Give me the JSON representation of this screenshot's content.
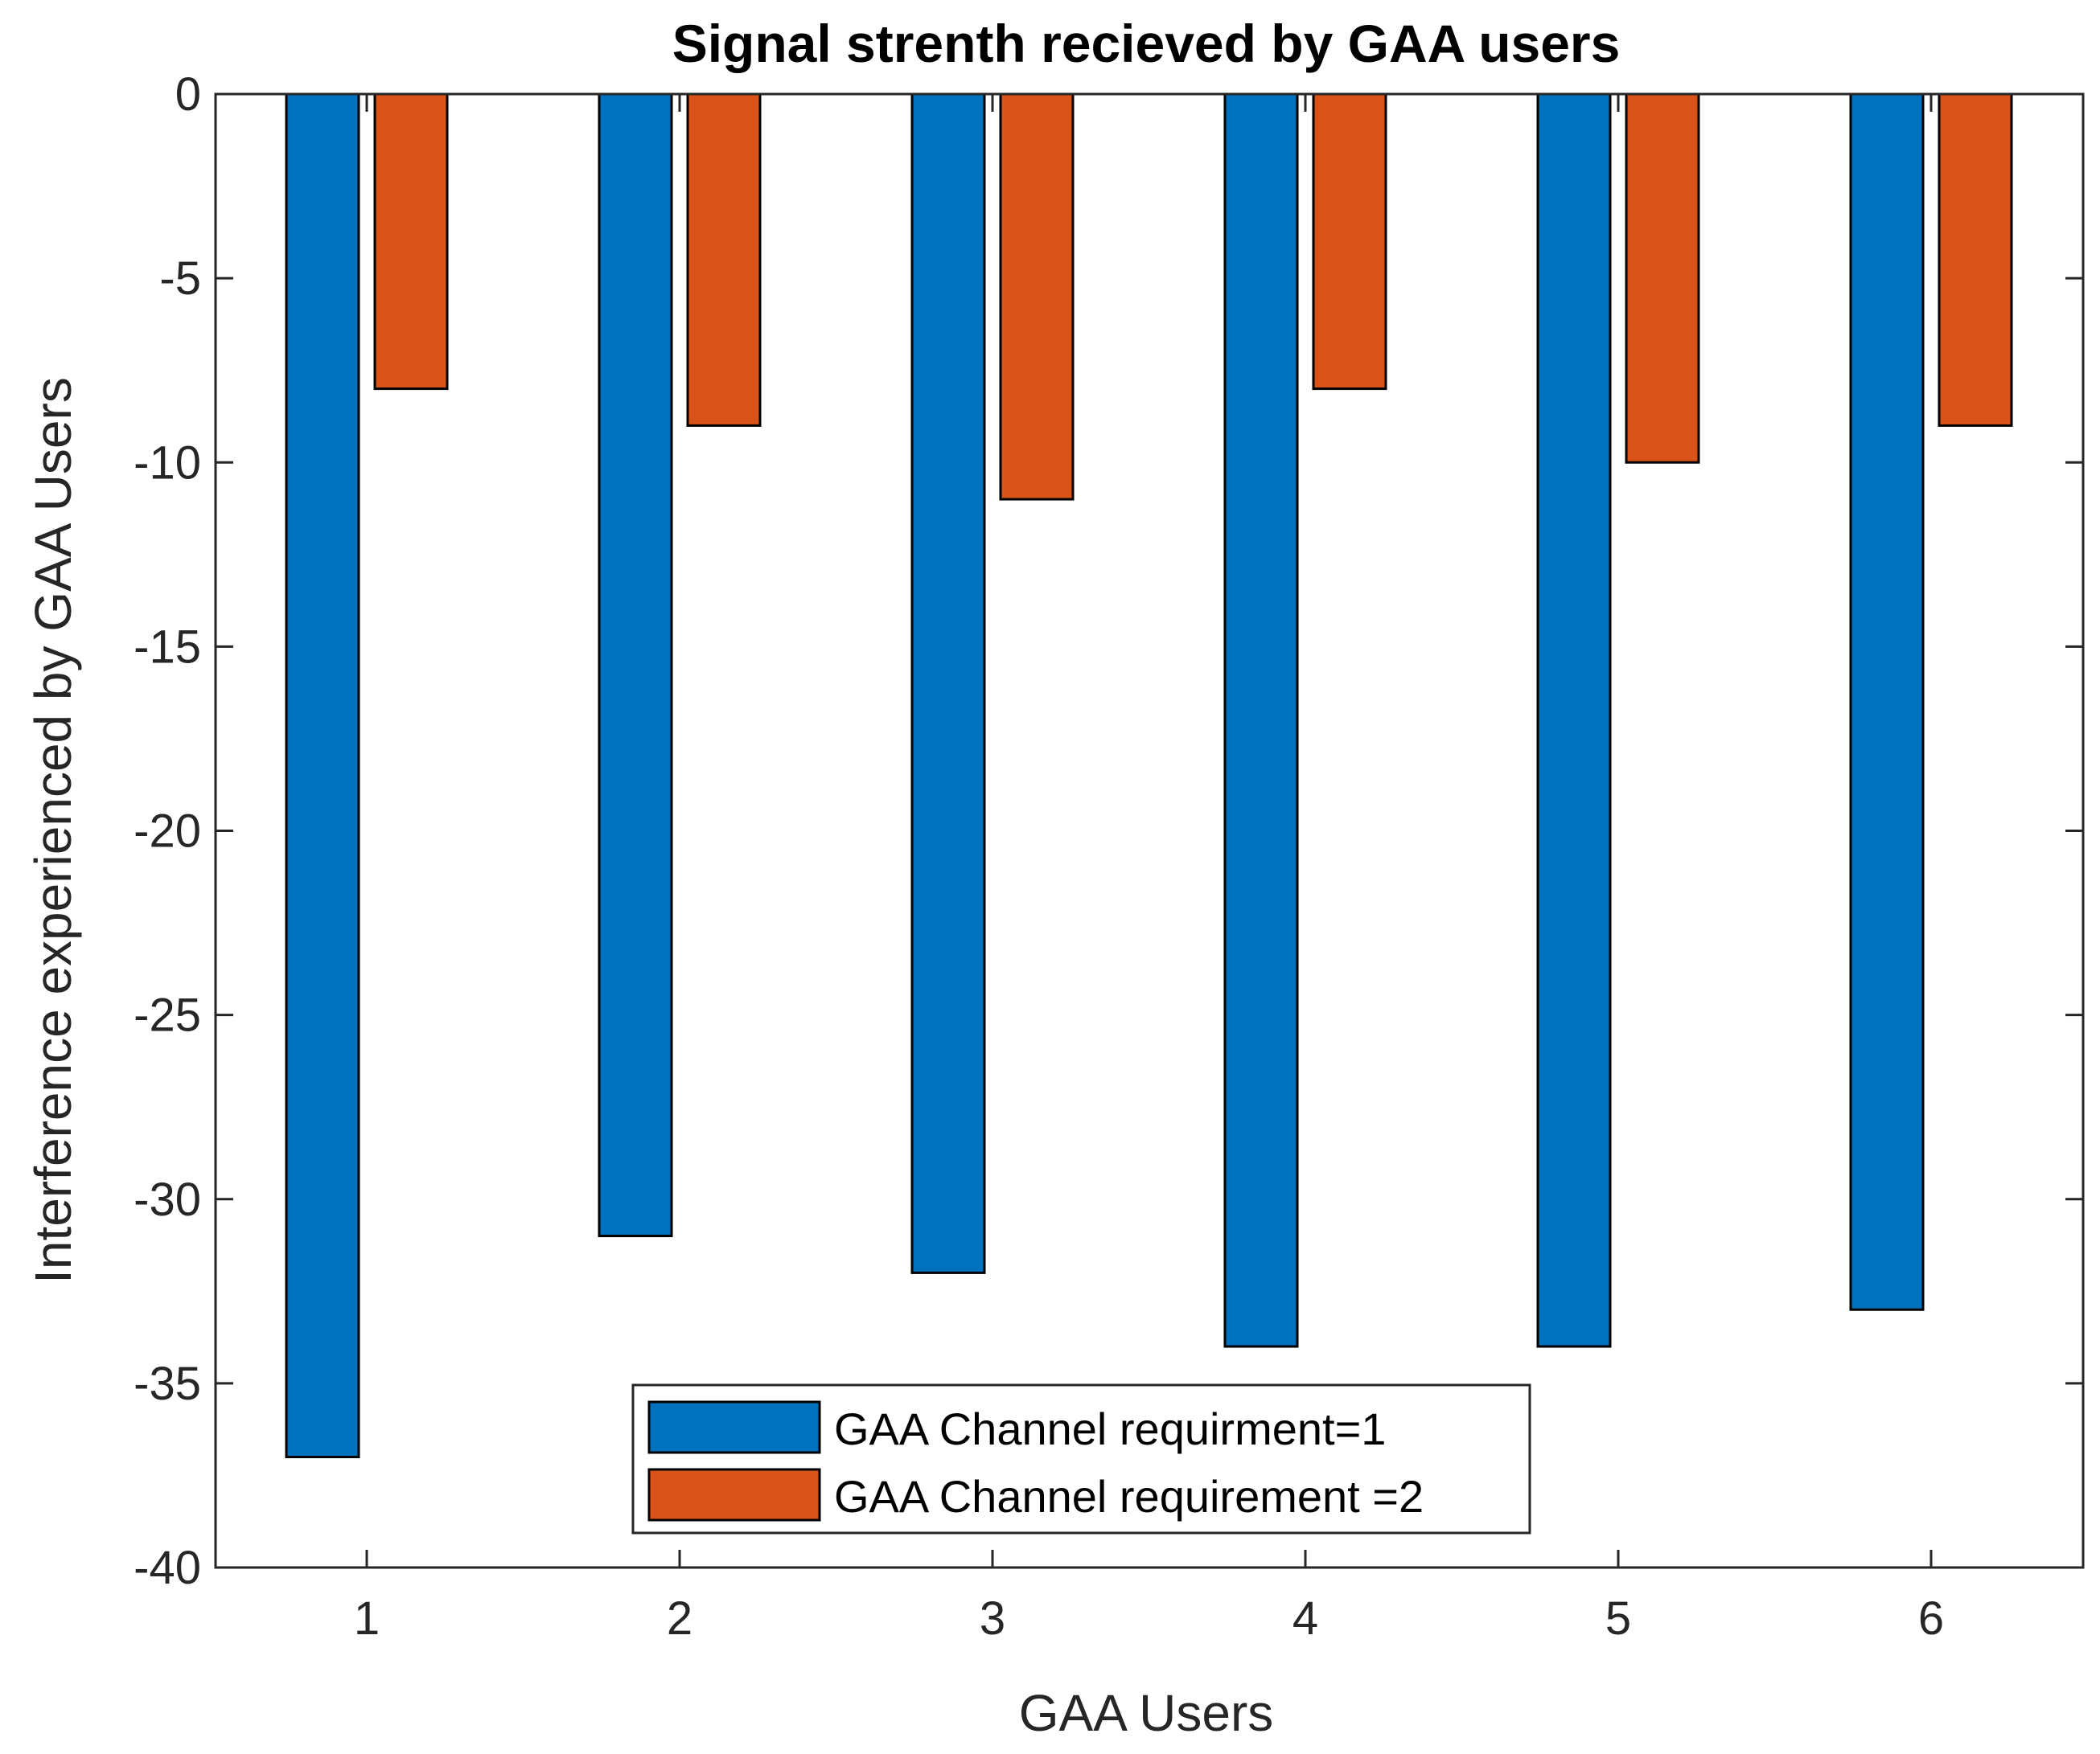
{
  "chart_data": {
    "type": "bar",
    "title": "Signal strenth recieved by GAA users",
    "xlabel": "GAA Users",
    "ylabel": "Interference experienced by GAA Users",
    "categories": [
      "1",
      "2",
      "3",
      "4",
      "5",
      "6"
    ],
    "series": [
      {
        "name": "GAA Channel requirment=1",
        "color": "#0072BD",
        "values": [
          -37,
          -31,
          -32,
          -34,
          -34,
          -33
        ]
      },
      {
        "name": "GAA Channel requirement =2",
        "color": "#D95319",
        "values": [
          -8,
          -9,
          -11,
          -8,
          -10,
          -9
        ]
      }
    ],
    "ylim": [
      -40,
      0
    ],
    "yticks": [
      0,
      -5,
      -10,
      -15,
      -20,
      -25,
      -30,
      -35,
      -40
    ],
    "ytick_labels": [
      "0",
      "-5",
      "-10",
      "-15",
      "-20",
      "-25",
      "-30",
      "-35",
      "-40"
    ],
    "grid": false,
    "legend_position": "bottom-center"
  }
}
